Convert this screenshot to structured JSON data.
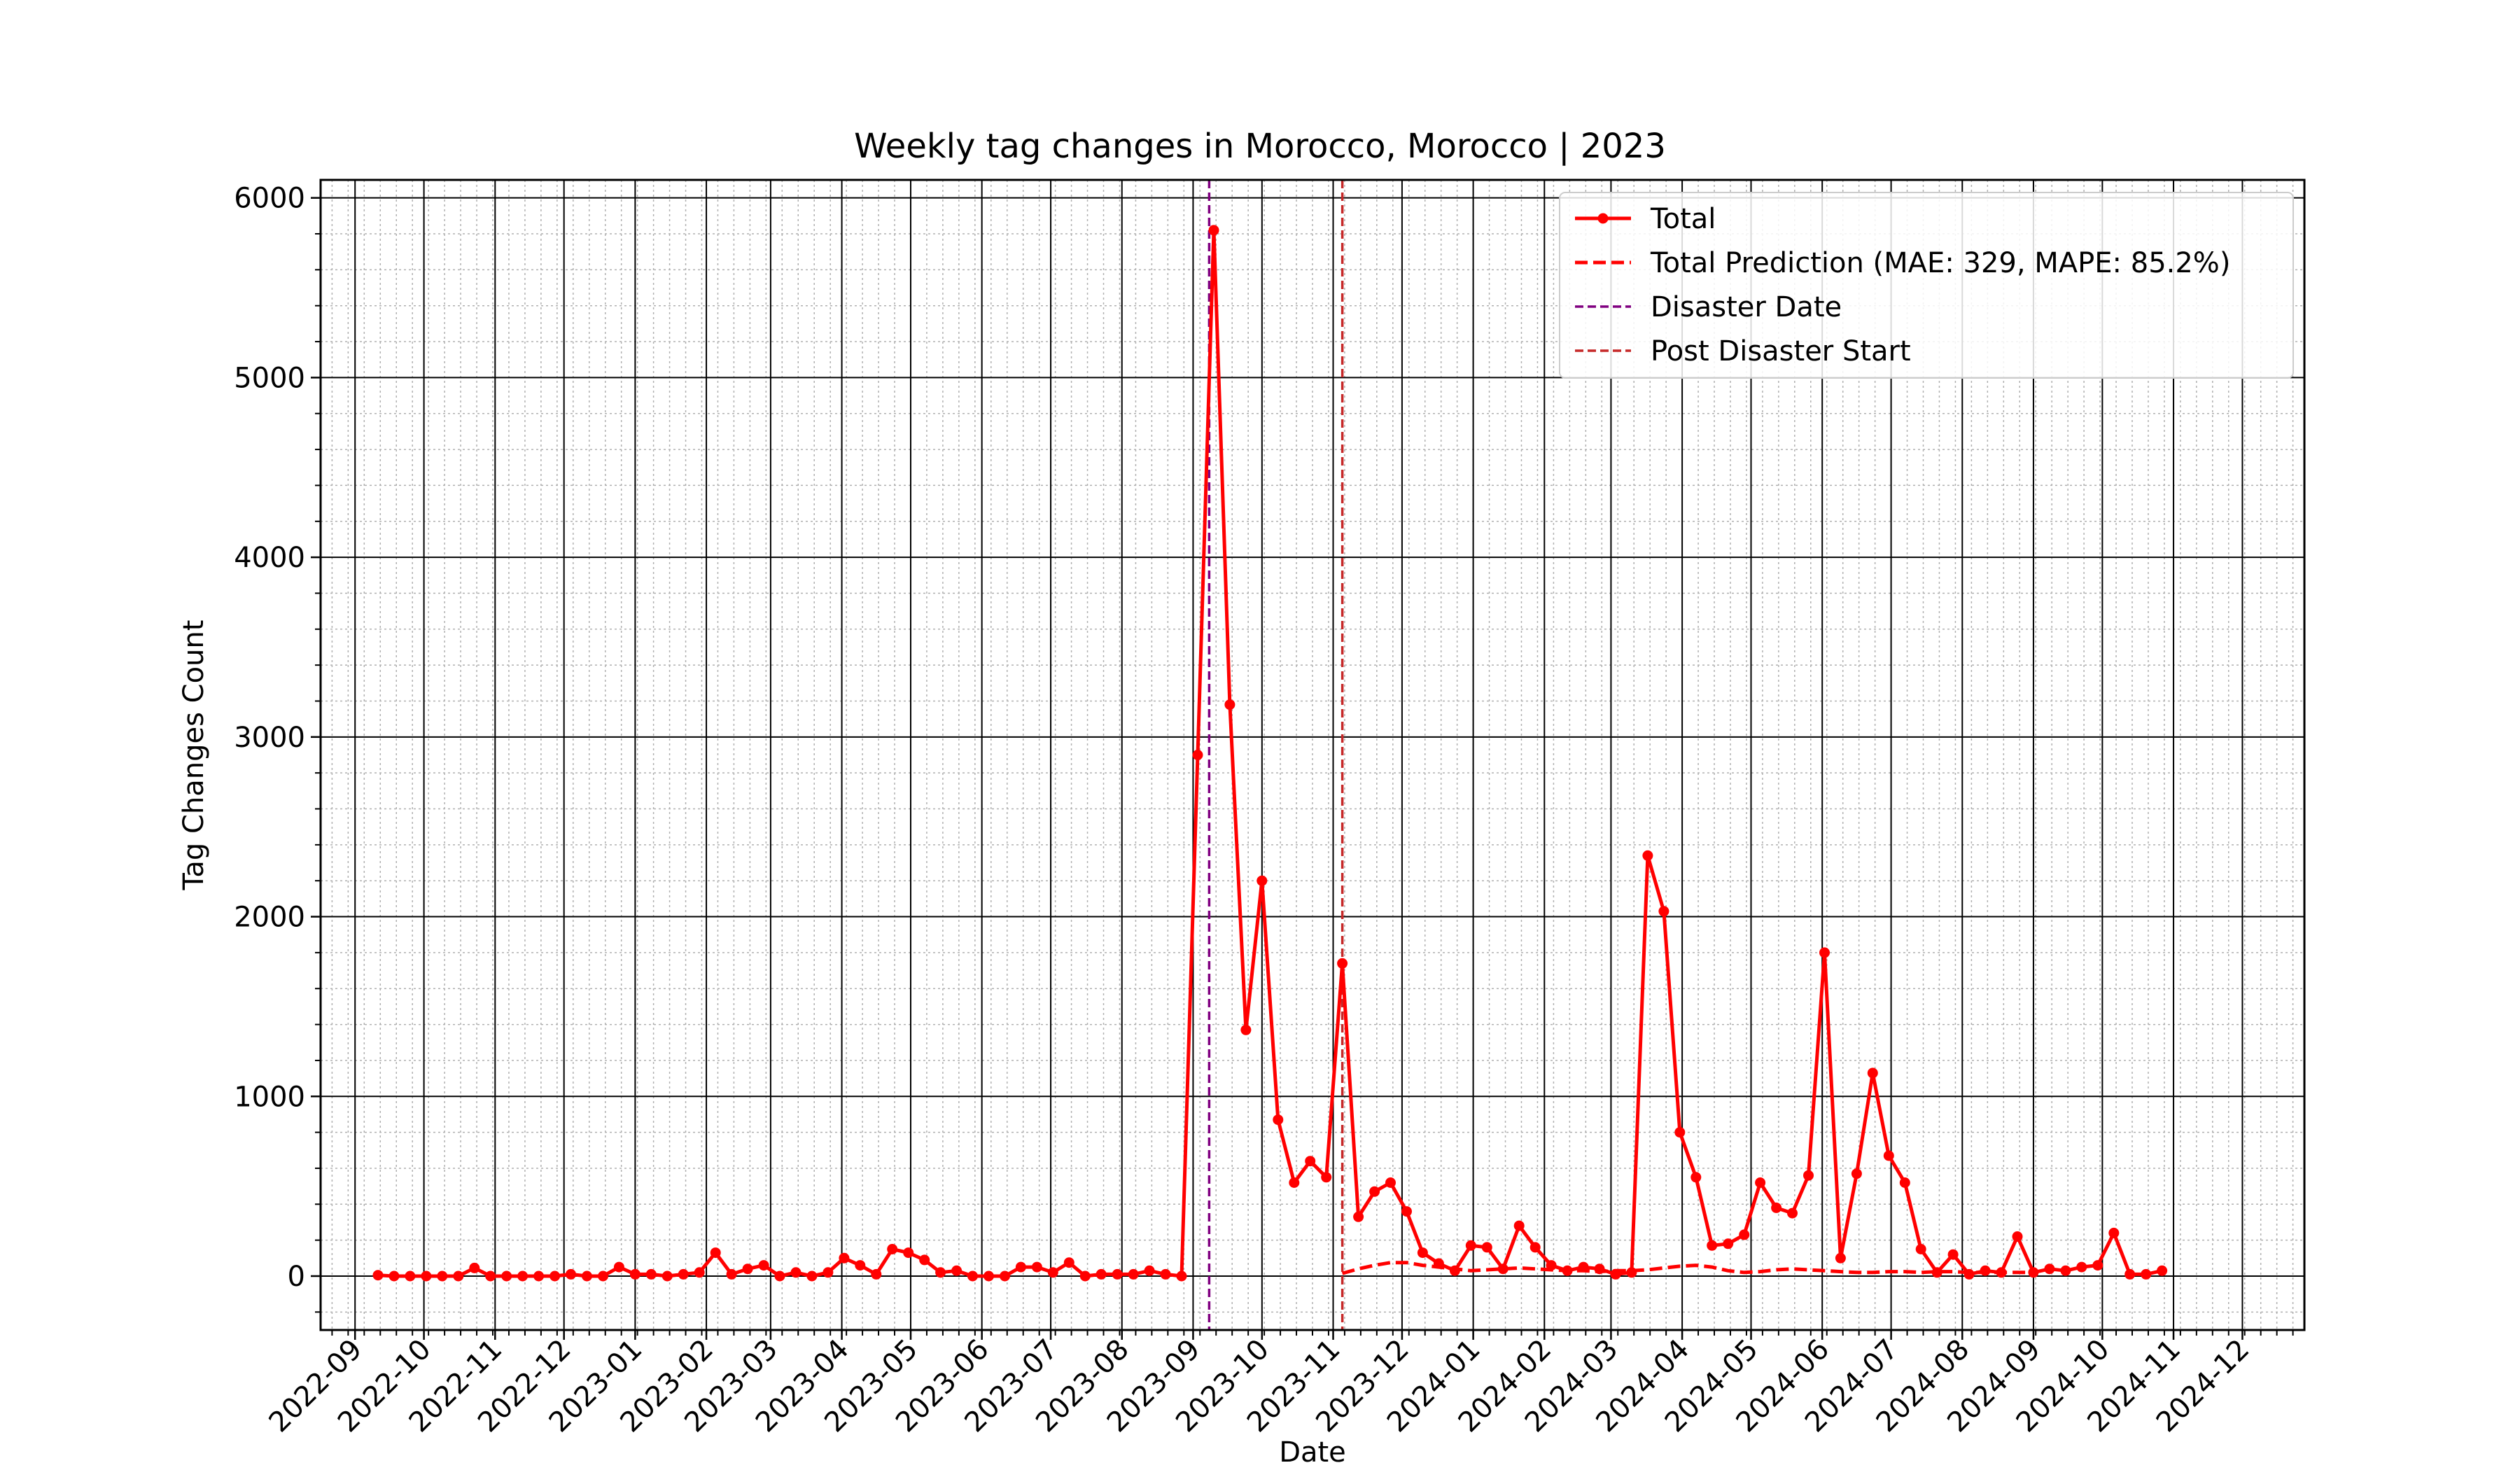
{
  "chart_data": {
    "type": "line",
    "title": "Weekly tag changes in Morocco, Morocco | 2023",
    "xlabel": "Date",
    "ylabel": "Tag Changes Count",
    "ylim": [
      -300,
      6100
    ],
    "xlim": [
      "2022-08-17",
      "2024-12-28"
    ],
    "y_ticks": [
      0,
      1000,
      2000,
      3000,
      4000,
      5000,
      6000
    ],
    "y_tick_labels": [
      "0",
      "1000",
      "2000",
      "3000",
      "4000",
      "5000",
      "6000"
    ],
    "x_ticks": [
      "2022-09-01",
      "2022-10-01",
      "2022-11-01",
      "2022-12-01",
      "2023-01-01",
      "2023-02-01",
      "2023-03-01",
      "2023-04-01",
      "2023-05-01",
      "2023-06-01",
      "2023-07-01",
      "2023-08-01",
      "2023-09-01",
      "2023-10-01",
      "2023-11-01",
      "2023-12-01",
      "2024-01-01",
      "2024-02-01",
      "2024-03-01",
      "2024-04-01",
      "2024-05-01",
      "2024-06-01",
      "2024-07-01",
      "2024-08-01",
      "2024-09-01",
      "2024-10-01",
      "2024-11-01",
      "2024-12-01"
    ],
    "x_tick_labels": [
      "2022-09",
      "2022-10",
      "2022-11",
      "2022-12",
      "2023-01",
      "2023-02",
      "2023-03",
      "2023-04",
      "2023-05",
      "2023-06",
      "2023-07",
      "2023-08",
      "2023-09",
      "2023-10",
      "2023-11",
      "2023-12",
      "2024-01",
      "2024-02",
      "2024-03",
      "2024-04",
      "2024-05",
      "2024-06",
      "2024-07",
      "2024-08",
      "2024-09",
      "2024-10",
      "2024-11",
      "2024-12"
    ],
    "grid": true,
    "minor_grid": true,
    "legend_position": "top-right",
    "x_start": "2022-09-11",
    "x_step_days": 7,
    "series": [
      {
        "name": "Total",
        "color": "#ff0000",
        "style": "solid-marker",
        "values": [
          5,
          0,
          0,
          0,
          0,
          0,
          45,
          0,
          0,
          0,
          0,
          0,
          10,
          0,
          0,
          50,
          10,
          10,
          0,
          10,
          20,
          130,
          10,
          40,
          60,
          0,
          20,
          0,
          20,
          100,
          60,
          10,
          150,
          130,
          90,
          20,
          30,
          0,
          0,
          0,
          50,
          50,
          20,
          75,
          0,
          10,
          10,
          10,
          30,
          10,
          0,
          2900,
          5820,
          3180,
          1370,
          2200,
          870,
          520,
          640,
          550,
          1740,
          330,
          470,
          520,
          360,
          130,
          70,
          30,
          170,
          160,
          40,
          280,
          160,
          60,
          30,
          50,
          40,
          10,
          20,
          2340,
          2030,
          800,
          550,
          170,
          180,
          230,
          520,
          380,
          350,
          560,
          1800,
          100,
          570,
          1130,
          670,
          520,
          150,
          20,
          120,
          10,
          30,
          20,
          220,
          20,
          40,
          30,
          50,
          60,
          240,
          10,
          10,
          30
        ]
      },
      {
        "name": "Total Prediction (MAE: 329, MAPE: 85.2%)",
        "color": "#ff0000",
        "style": "dashed",
        "x_start": "2023-11-05",
        "values": [
          15,
          40,
          60,
          75,
          75,
          60,
          50,
          40,
          30,
          35,
          40,
          45,
          40,
          35,
          30,
          30,
          25,
          30,
          30,
          35,
          45,
          55,
          60,
          50,
          30,
          20,
          25,
          35,
          40,
          35,
          30,
          25,
          20,
          20,
          25,
          25,
          20,
          25,
          25,
          20,
          20,
          20,
          20,
          20
        ]
      }
    ],
    "vlines": [
      {
        "name": "Disaster Date",
        "date": "2023-09-08",
        "color": "#800080",
        "style": "dashed"
      },
      {
        "name": "Post Disaster Start",
        "date": "2023-11-05",
        "color": "#c62828",
        "style": "dashed"
      }
    ]
  }
}
